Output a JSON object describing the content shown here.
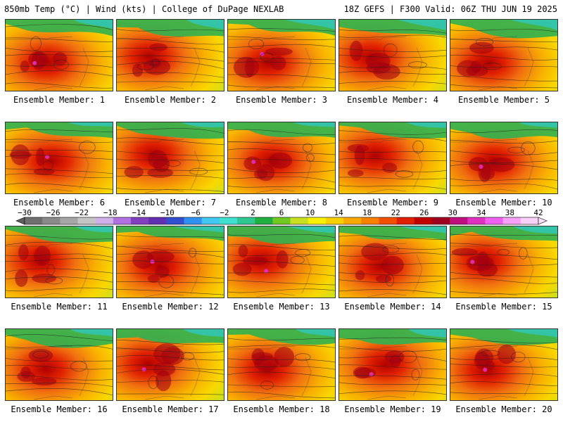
{
  "header": {
    "left_title": "850mb Temp (°C) | Wind (kts) | College of DuPage NEXLAB",
    "right_title": "18Z GEFS | F300 Valid: 06Z THU JUN 19 2025"
  },
  "colorbar": {
    "tick_labels": [
      "−30",
      "−26",
      "−22",
      "−18",
      "−14",
      "−10",
      "−6",
      "−2",
      "2",
      "6",
      "10",
      "14",
      "18",
      "22",
      "26",
      "30",
      "34",
      "38",
      "42"
    ],
    "colors": [
      "#6f6f6f",
      "#8a8a8a",
      "#a6a6a6",
      "#c4c4c4",
      "#d0b0e8",
      "#b070e0",
      "#8040c0",
      "#6030b0",
      "#3050d0",
      "#3090f0",
      "#40c8f0",
      "#40e0d0",
      "#30c890",
      "#20b040",
      "#70c820",
      "#c8e020",
      "#f8f000",
      "#f8d000",
      "#f8a800",
      "#f88000",
      "#f05000",
      "#e02000",
      "#c00000",
      "#a00020",
      "#c01080",
      "#e030c0",
      "#f060f0",
      "#f8a0f8",
      "#f8d0f8"
    ]
  },
  "panels": [
    {
      "label": "Ensemble Member: 1"
    },
    {
      "label": "Ensemble Member: 2"
    },
    {
      "label": "Ensemble Member: 3"
    },
    {
      "label": "Ensemble Member: 4"
    },
    {
      "label": "Ensemble Member: 5"
    },
    {
      "label": "Ensemble Member: 6"
    },
    {
      "label": "Ensemble Member: 7"
    },
    {
      "label": "Ensemble Member: 8"
    },
    {
      "label": "Ensemble Member: 9"
    },
    {
      "label": "Ensemble Member: 10"
    },
    {
      "label": "Ensemble Member: 11"
    },
    {
      "label": "Ensemble Member: 12"
    },
    {
      "label": "Ensemble Member: 13"
    },
    {
      "label": "Ensemble Member: 14"
    },
    {
      "label": "Ensemble Member: 15"
    },
    {
      "label": "Ensemble Member: 16"
    },
    {
      "label": "Ensemble Member: 17"
    },
    {
      "label": "Ensemble Member: 18"
    },
    {
      "label": "Ensemble Member: 19"
    },
    {
      "label": "Ensemble Member: 20"
    }
  ]
}
